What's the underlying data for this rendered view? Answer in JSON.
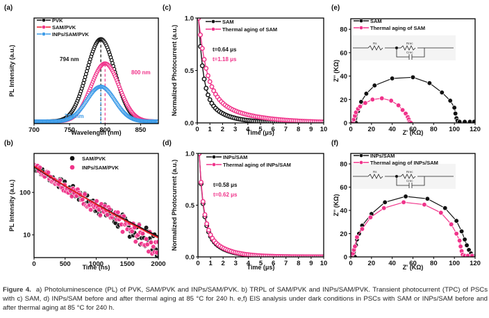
{
  "figure_label": "Figure 4.",
  "caption": "a) Photoluminescence (PL) of PVK, SAM/PVK and INPs/SAM/PVK. b) TRPL of SAM/PVK and INPs/SAM/PVK. Transient photocurrent (TPC) of PSCs with c) SAM, d) INPs/SAM before and after thermal aging at 85 °C for 240 h. e,f) EIS analysis under dark conditions in PSCs with SAM or INPs/SAM before and after thermal aging at 85 °C for 240 h.",
  "colors": {
    "black": "#111111",
    "pink": "#f0338a",
    "red": "#ee1c25",
    "blue": "#3c9be8"
  },
  "chart_data": [
    {
      "id": "a",
      "panel_label": "(a)",
      "type": "line",
      "xlabel": "Wavelength (nm)",
      "ylabel": "PL Intensity (a.u.)",
      "xlim": [
        700,
        875
      ],
      "ylim": [
        0,
        1.0
      ],
      "xticks": [
        700,
        750,
        800,
        850
      ],
      "yticks": [],
      "legend": "top-left",
      "series": [
        {
          "name": "PVK",
          "color": "#111111",
          "peak": 794,
          "amplitude": 0.78,
          "width": 28
        },
        {
          "name": "SAM/PVK",
          "color": "#f0338a",
          "legend_color": "#ee1c25",
          "peak": 800,
          "amplitude": 0.55,
          "width": 28
        },
        {
          "name": "INPs/SAM/PVK",
          "color": "#3c9be8",
          "peak": 794,
          "amplitude": 0.33,
          "width": 28
        }
      ],
      "annotations": [
        {
          "text": "794 nm",
          "color": "#111111",
          "x": 794
        },
        {
          "text": "800 nm",
          "color": "#f0338a",
          "x": 800
        },
        {
          "text": "794 nm",
          "color": "#3c9be8",
          "x": 794
        }
      ]
    },
    {
      "id": "b",
      "panel_label": "(b)",
      "type": "scatter",
      "xlabel": "Time (ns)",
      "ylabel": "PL Intensity (a.u.)",
      "xlim": [
        0,
        2000
      ],
      "ylim": [
        2.9,
        830
      ],
      "yscale": "log",
      "xticks": [
        0,
        500,
        1000,
        1500,
        2000
      ],
      "yticks": [
        10,
        100
      ],
      "legend": "top-right",
      "series": [
        {
          "name": "SAM/PVK",
          "color": "#111111",
          "start": 400,
          "end": 5.5,
          "fit_color": "#111111"
        },
        {
          "name": "INPs/SAM/PVK",
          "color": "#f0338a",
          "start": 420,
          "end": 5.0,
          "fit_color": "#ee1c25"
        }
      ]
    },
    {
      "id": "c",
      "panel_label": "(c)",
      "type": "line",
      "xlabel": "Time (μs)",
      "ylabel": "Normalized Photocurrent (a.u.)",
      "xlim": [
        0,
        10
      ],
      "ylim": [
        0,
        1.0
      ],
      "xticks": [
        0,
        1,
        2,
        3,
        4,
        5,
        6,
        7,
        8,
        9,
        10
      ],
      "yticks": [
        0.0,
        0.5,
        1.0
      ],
      "legend": "top-right",
      "series": [
        {
          "name": "SAM",
          "color": "#111111",
          "tau": 0.64
        },
        {
          "name": "Thermal aging of SAM",
          "color": "#f0338a",
          "tau": 1.18
        }
      ],
      "annotations": [
        {
          "text": "t=0.64 μs",
          "color": "#111111"
        },
        {
          "text": "t=1.18 μs",
          "color": "#f0338a"
        }
      ]
    },
    {
      "id": "d",
      "panel_label": "(d)",
      "type": "line",
      "xlabel": "Time (μs)",
      "ylabel": "Normalized Photocurrent (a.u.)",
      "xlim": [
        0,
        10
      ],
      "ylim": [
        0,
        1.0
      ],
      "xticks": [
        0,
        1,
        2,
        3,
        4,
        5,
        6,
        7,
        8,
        9,
        10
      ],
      "yticks": [
        0.0,
        0.5,
        1.0
      ],
      "legend": "top-right",
      "series": [
        {
          "name": "INPs/SAM",
          "color": "#111111",
          "tau": 0.58
        },
        {
          "name": "Thermal aging of INPs/SAM",
          "color": "#f0338a",
          "tau": 0.62
        }
      ],
      "annotations": [
        {
          "text": "t=0.58 μs",
          "color": "#111111"
        },
        {
          "text": "t=0.62 μs",
          "color": "#f0338a"
        }
      ]
    },
    {
      "id": "e",
      "panel_label": "(e)",
      "type": "scatter",
      "xlabel": "Z' (KΩ)",
      "ylabel": "Z'' (KΩ)",
      "xlim": [
        0,
        120
      ],
      "ylim": [
        0,
        89
      ],
      "xticks": [
        0,
        20,
        40,
        60,
        80,
        100,
        120
      ],
      "yticks": [
        0,
        20,
        40,
        60,
        80
      ],
      "legend": "top-left",
      "circuit": {
        "labels": [
          "Rs",
          "Rrec",
          "Crec"
        ]
      },
      "series": [
        {
          "name": "SAM",
          "color": "#111111",
          "x": [
            5,
            7,
            10,
            15,
            23,
            40,
            60,
            76,
            88,
            96,
            100,
            101,
            102,
            103,
            105,
            110,
            115,
            119
          ],
          "y": [
            0,
            10,
            18,
            25,
            32,
            38,
            39,
            34,
            26,
            19,
            13,
            8,
            4,
            2,
            1,
            1,
            1,
            1
          ]
        },
        {
          "name": "Thermal aging of SAM",
          "color": "#f0338a",
          "x": [
            2,
            3,
            4,
            5,
            7,
            9,
            14,
            21,
            30,
            39,
            46,
            50,
            53,
            55,
            56,
            57,
            58
          ],
          "y": [
            0,
            3,
            6,
            9,
            12,
            14,
            17,
            20,
            21,
            19,
            15,
            11,
            8,
            5,
            3,
            1,
            0
          ]
        }
      ]
    },
    {
      "id": "f",
      "panel_label": "(f)",
      "type": "scatter",
      "xlabel": "Z' (KΩ)",
      "ylabel": "Z'' (KΩ)",
      "xlim": [
        0,
        120
      ],
      "ylim": [
        0,
        89
      ],
      "xticks": [
        0,
        20,
        40,
        60,
        80,
        100,
        120
      ],
      "yticks": [
        0,
        20,
        40,
        60,
        80
      ],
      "legend": "top-left",
      "circuit": {
        "labels": [
          "Rs",
          "Rrec",
          "Crec"
        ]
      },
      "series": [
        {
          "name": "INPs/SAM",
          "color": "#111111",
          "x": [
            4,
            5,
            6,
            8,
            11,
            20,
            33,
            53,
            74,
            91,
            102,
            107,
            110,
            112,
            114,
            116,
            118
          ],
          "y": [
            0,
            10,
            15,
            20,
            27,
            37,
            47,
            52,
            50,
            42,
            31,
            22,
            15,
            10,
            6,
            3,
            1
          ]
        },
        {
          "name": "Thermal aging of INPs/SAM",
          "color": "#f0338a",
          "x": [
            1,
            2,
            3,
            4,
            6,
            11,
            19,
            32,
            51,
            71,
            87,
            97,
            102,
            105,
            106,
            107,
            108,
            110,
            113,
            117
          ],
          "y": [
            0,
            3,
            6,
            9,
            17,
            24,
            34,
            42,
            47,
            45,
            38,
            28,
            20,
            14,
            9,
            5,
            2,
            1,
            1,
            1
          ]
        }
      ]
    }
  ]
}
